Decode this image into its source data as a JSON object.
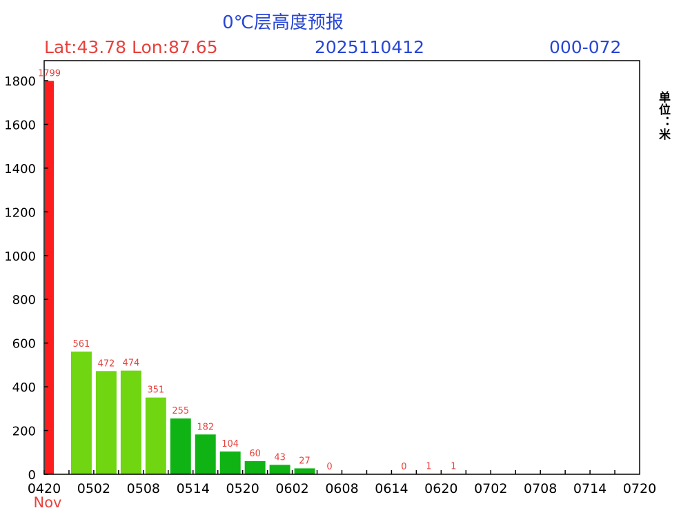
{
  "header": {
    "title": "0℃层高度预报",
    "location": "Lat:43.78 Lon:87.65",
    "run_time": "2025110412",
    "range": "000-072",
    "unit": "单位：米"
  },
  "colors": {
    "highlight": "#ff1c1c",
    "light_green": "#6fd611",
    "dark_green": "#0fb414",
    "label": "#e8413c",
    "title_blue": "#2846d6"
  },
  "chart_data": {
    "type": "bar",
    "x_tick_labels": [
      "0420",
      "0502",
      "0508",
      "0514",
      "0520",
      "0602",
      "0608",
      "0614",
      "0620",
      "0702",
      "0708",
      "0714",
      "0720"
    ],
    "month_label": "Nov",
    "categories": [
      "0420",
      "0423",
      "0502",
      "0505",
      "0508",
      "0511",
      "0514",
      "0517",
      "0520",
      "0523",
      "0602",
      "0605",
      "0608",
      "0611",
      "0614",
      "0617",
      "0620",
      "0623",
      "0702",
      "0705",
      "0708",
      "0711",
      "0714",
      "0717"
    ],
    "values": [
      1799,
      561,
      472,
      474,
      351,
      255,
      182,
      104,
      60,
      43,
      27,
      0,
      null,
      null,
      0,
      1,
      1,
      null,
      null,
      null,
      null,
      null,
      null,
      null
    ],
    "bar_colors": [
      "highlight",
      "light_green",
      "light_green",
      "light_green",
      "light_green",
      "dark_green",
      "dark_green",
      "dark_green",
      "dark_green",
      "dark_green",
      "dark_green",
      "dark_green",
      null,
      null,
      "dark_green",
      "dark_green",
      "dark_green",
      null,
      null,
      null,
      null,
      null,
      null,
      null
    ],
    "ylim": [
      0,
      1800
    ],
    "yticks": [
      0,
      200,
      400,
      600,
      800,
      1000,
      1200,
      1400,
      1600,
      1800
    ],
    "grid": false,
    "legend": "none"
  }
}
